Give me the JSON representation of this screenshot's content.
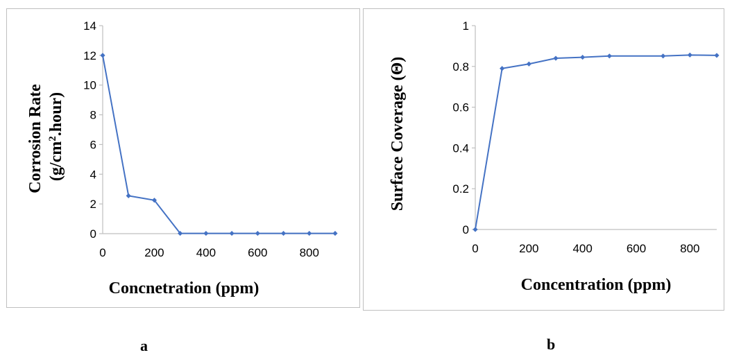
{
  "chart_data": [
    {
      "type": "line",
      "xlabel": "Concnetration (ppm)",
      "ylabel_line1": "Corrosion Rate",
      "ylabel_line2_prefix": "(g/cm",
      "ylabel_line2_sup": "2",
      "ylabel_line2_suffix": ".hour)",
      "xlim": [
        0,
        900
      ],
      "ylim": [
        0,
        14
      ],
      "xticks": [
        0,
        200,
        400,
        600,
        800
      ],
      "yticks": [
        0,
        2,
        4,
        6,
        8,
        10,
        12,
        14
      ],
      "x": [
        0,
        100,
        200,
        300,
        400,
        500,
        600,
        700,
        800,
        900
      ],
      "series": [
        {
          "values": [
            12,
            2.55,
            2.25,
            0.02,
            0.02,
            0.02,
            0.02,
            0.02,
            0.02,
            0.02
          ]
        }
      ],
      "grid": false,
      "color": "#4472c4"
    },
    {
      "type": "line",
      "xlabel": "Concentration (ppm)",
      "ylabel": "Surface Coverage (Θ)",
      "xlim": [
        0,
        900
      ],
      "ylim": [
        0,
        1
      ],
      "xticks": [
        0,
        200,
        400,
        600,
        800
      ],
      "yticks": [
        0,
        0.2,
        0.4,
        0.6,
        0.8,
        1
      ],
      "x": [
        0,
        100,
        200,
        300,
        400,
        500,
        700,
        800,
        900
      ],
      "series": [
        {
          "values": [
            0,
            0.79,
            0.812,
            0.84,
            0.845,
            0.851,
            0.851,
            0.856,
            0.854
          ]
        }
      ],
      "grid": false,
      "color": "#4472c4"
    }
  ],
  "captions": {
    "a": "a",
    "b": "b"
  }
}
